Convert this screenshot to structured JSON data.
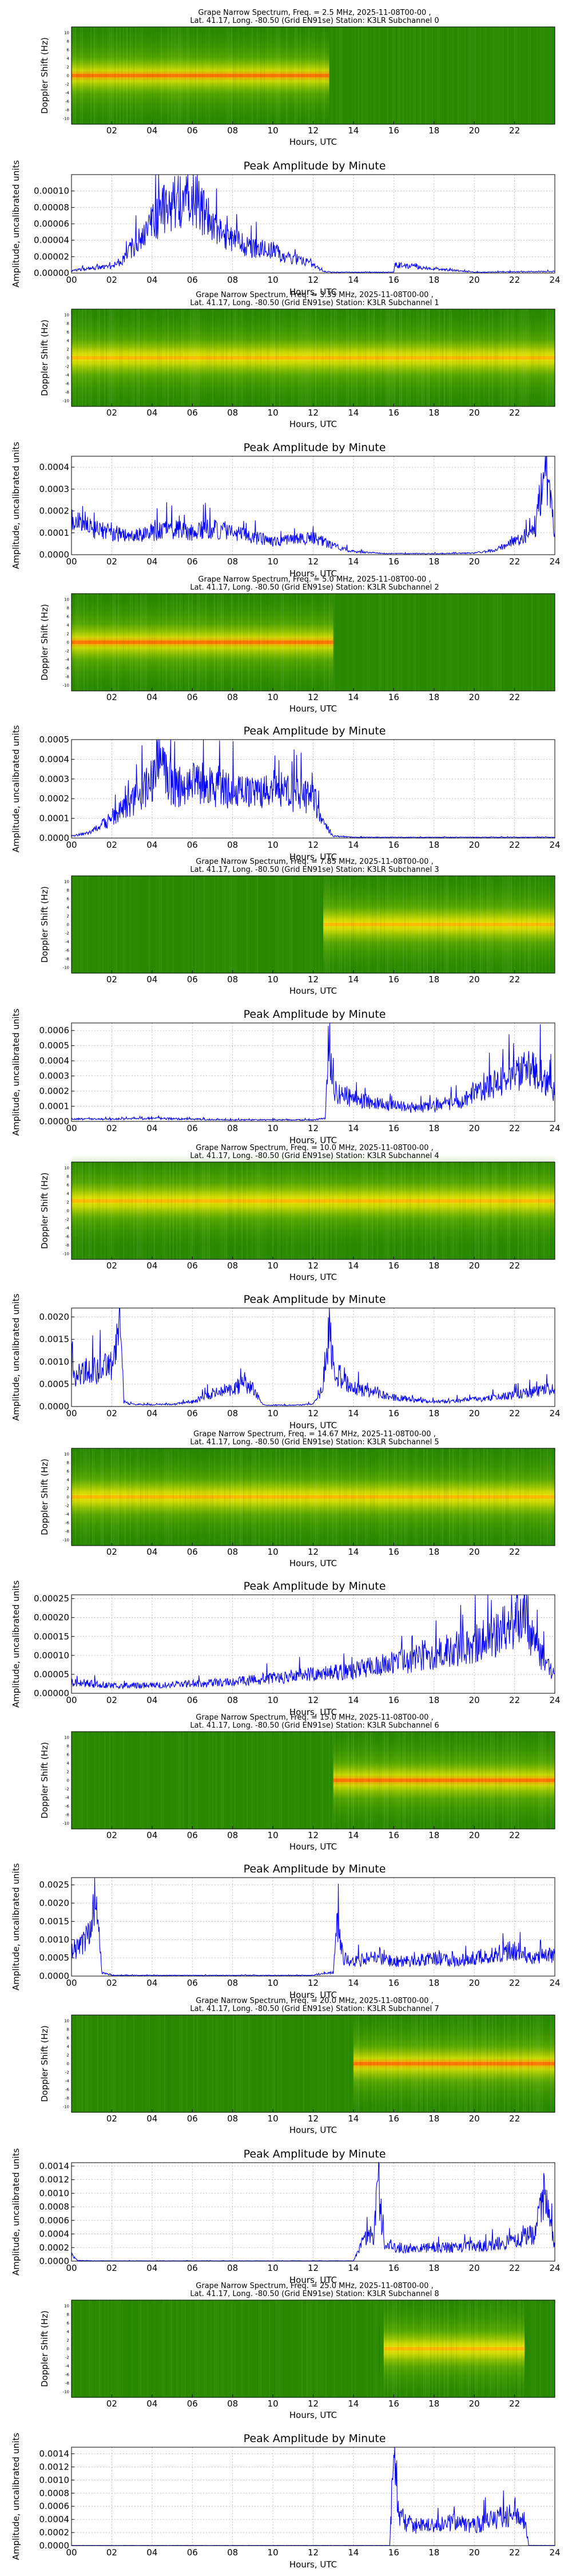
{
  "page": {
    "spectrogram_ylabel": "Doppler Shift (Hz)",
    "spectrogram_yticks": [
      "-10",
      "-8",
      "-6",
      "-4",
      "-2",
      "0",
      "2",
      "4",
      "6",
      "8",
      "10"
    ],
    "spectrogram_xticks": [
      "02",
      "04",
      "06",
      "08",
      "10",
      "12",
      "14",
      "16",
      "18",
      "20",
      "22"
    ],
    "amplitude_title": "Peak Amplitude by Minute",
    "amplitude_ylabel": "Amplitude, uncalibrated units",
    "xlabel": "Hours, UTC",
    "amplitude_xticks": [
      "00",
      "02",
      "04",
      "06",
      "08",
      "10",
      "12",
      "14",
      "16",
      "18",
      "20",
      "22",
      "24"
    ],
    "colors": {
      "line": "#0000ff",
      "grid": "#b0b0b0"
    }
  },
  "chart_data": [
    {
      "type": "heatmap",
      "title_line1": "Grape Narrow Spectrum, Freq. = 2.5 MHz, 2025-11-08T00-00 ,",
      "title_line2": "Lat.  41.17, Long. -80.50 (Grid EN91se) Station: K3LR Subchannel 0",
      "signal_hours": [
        0,
        12.8
      ],
      "center_intensity": 0.85,
      "band_offset_hz": 0,
      "ylabel": "Doppler Shift (Hz)",
      "xlabel": "Hours, UTC"
    },
    {
      "type": "line",
      "title": "Peak Amplitude by Minute",
      "ylabel": "Amplitude, uncalibrated units",
      "xlabel": "Hours, UTC",
      "xlim": [
        0,
        24
      ],
      "ylim": [
        0,
        0.00012
      ],
      "yticks": [
        "0.00000",
        "0.00002",
        "0.00004",
        "0.00006",
        "0.00008",
        "0.00010"
      ],
      "x": [
        0,
        1,
        2,
        2.5,
        3,
        3.5,
        4,
        4.5,
        5,
        5.5,
        6,
        6.5,
        7,
        7.5,
        8,
        8.5,
        9,
        9.5,
        10,
        10.5,
        11,
        11.5,
        12,
        12.5,
        13,
        16,
        16.05,
        20,
        24
      ],
      "y": [
        3e-06,
        6e-06,
        8e-06,
        1.5e-05,
        3e-05,
        4.5e-05,
        6e-05,
        7.5e-05,
        8.5e-05,
        9e-05,
        9e-05,
        7.5e-05,
        6e-05,
        4.5e-05,
        4e-05,
        3.5e-05,
        3e-05,
        3e-05,
        2.8e-05,
        2e-05,
        1.8e-05,
        1.5e-05,
        1e-05,
        2e-06,
        1e-06,
        1e-06,
        1e-05,
        1e-06,
        2e-06
      ]
    },
    {
      "type": "heatmap",
      "title_line1": "Grape Narrow Spectrum, Freq. = 3.33 MHz, 2025-11-08T00-00 ,",
      "title_line2": "Lat.  41.17, Long. -80.50 (Grid EN91se) Station: K3LR Subchannel 1",
      "signal_hours": [
        0,
        24
      ],
      "center_intensity": 0.7,
      "band_offset_hz": 0,
      "ylabel": "Doppler Shift (Hz)",
      "xlabel": "Hours, UTC"
    },
    {
      "type": "line",
      "title": "Peak Amplitude by Minute",
      "ylabel": "Amplitude, uncalibrated units",
      "xlabel": "Hours, UTC",
      "xlim": [
        0,
        24
      ],
      "ylim": [
        0,
        0.00045
      ],
      "yticks": [
        "0.0000",
        "0.0001",
        "0.0002",
        "0.0003",
        "0.0004"
      ],
      "x": [
        0,
        1,
        2,
        3,
        4,
        5,
        6,
        7,
        8,
        9,
        10,
        11,
        12,
        13,
        14,
        15,
        16,
        17,
        18,
        19,
        20,
        21,
        22,
        23,
        23.5,
        24
      ],
      "y": [
        0.00015,
        0.00012,
        0.0001,
        8e-05,
        0.0001,
        0.00012,
        0.0001,
        0.00012,
        0.0001,
        8e-05,
        6e-05,
        7e-05,
        8e-05,
        4e-05,
        1.5e-05,
        8e-06,
        5e-06,
        5e-06,
        5e-06,
        6e-06,
        8e-06,
        2e-05,
        6e-05,
        0.0001,
        0.0004,
        0.0001
      ]
    },
    {
      "type": "heatmap",
      "title_line1": "Grape Narrow Spectrum, Freq. = 5.0 MHz, 2025-11-08T00-00 ,",
      "title_line2": "Lat.  41.17, Long. -80.50 (Grid EN91se) Station: K3LR Subchannel 2",
      "signal_hours": [
        0,
        13
      ],
      "center_intensity": 0.9,
      "band_offset_hz": 0,
      "ylabel": "Doppler Shift (Hz)",
      "xlabel": "Hours, UTC"
    },
    {
      "type": "line",
      "title": "Peak Amplitude by Minute",
      "ylabel": "Amplitude, uncalibrated units",
      "xlabel": "Hours, UTC",
      "xlim": [
        0,
        24
      ],
      "ylim": [
        0,
        0.0005
      ],
      "yticks": [
        "0.0000",
        "0.0001",
        "0.0002",
        "0.0003",
        "0.0004",
        "0.0005"
      ],
      "x": [
        0,
        1,
        2,
        3,
        4,
        4.5,
        5,
        6,
        7,
        8,
        9,
        10,
        11,
        12,
        12.5,
        13,
        14,
        16,
        18,
        20,
        22,
        24
      ],
      "y": [
        1e-05,
        3e-05,
        0.0001,
        0.00018,
        0.0003,
        0.00042,
        0.00025,
        0.00028,
        0.00026,
        0.00024,
        0.00022,
        0.00025,
        0.00022,
        0.0002,
        8e-05,
        1e-05,
        4e-06,
        4e-06,
        4e-06,
        4e-06,
        4e-06,
        4e-06
      ]
    },
    {
      "type": "heatmap",
      "title_line1": "Grape Narrow Spectrum, Freq. = 7.85 MHz, 2025-11-08T00-00 ,",
      "title_line2": "Lat.  41.17, Long. -80.50 (Grid EN91se) Station: K3LR Subchannel 3",
      "signal_hours": [
        12.5,
        24
      ],
      "center_intensity": 0.55,
      "band_offset_hz": 0,
      "ylabel": "Doppler Shift (Hz)",
      "xlabel": "Hours, UTC"
    },
    {
      "type": "line",
      "title": "Peak Amplitude by Minute",
      "ylabel": "Amplitude, uncalibrated units",
      "xlabel": "Hours, UTC",
      "xlim": [
        0,
        24
      ],
      "ylim": [
        0,
        0.00065
      ],
      "yticks": [
        "0.0000",
        "0.0001",
        "0.0002",
        "0.0003",
        "0.0004",
        "0.0005",
        "0.0006"
      ],
      "x": [
        0,
        2,
        4,
        6,
        8,
        10,
        12,
        12.6,
        12.8,
        13,
        14,
        15,
        16,
        17,
        18,
        19,
        20,
        21,
        22,
        23,
        24
      ],
      "y": [
        1.5e-05,
        1.5e-05,
        2e-05,
        1.5e-05,
        1e-05,
        1e-05,
        1e-05,
        2e-05,
        0.0006,
        0.0002,
        0.00015,
        0.00012,
        0.0001,
        9e-05,
        0.0001,
        0.00012,
        0.00018,
        0.00025,
        0.0003,
        0.00035,
        0.0002
      ]
    },
    {
      "type": "heatmap",
      "title_line1": "Grape Narrow Spectrum, Freq. = 10.0 MHz, 2025-11-08T00-00 ,",
      "title_line2": "Lat.  41.17, Long. -80.50 (Grid EN91se) Station: K3LR Subchannel 4",
      "signal_hours": [
        0,
        24
      ],
      "center_intensity": 0.6,
      "band_offset_hz": 2,
      "ylabel": "Doppler Shift (Hz)",
      "xlabel": "Hours, UTC"
    },
    {
      "type": "line",
      "title": "Peak Amplitude by Minute",
      "ylabel": "Amplitude, uncalibrated units",
      "xlabel": "Hours, UTC",
      "xlim": [
        0,
        24
      ],
      "ylim": [
        0,
        0.0022
      ],
      "yticks": [
        "0.0000",
        "0.0005",
        "0.0010",
        "0.0015",
        "0.0020"
      ],
      "x": [
        0,
        1,
        2,
        2.4,
        2.6,
        3,
        4,
        5,
        6,
        7,
        8,
        8.5,
        9,
        9.4,
        9.6,
        10,
        11,
        12,
        12.4,
        12.8,
        13,
        14,
        15,
        16,
        17,
        18,
        20,
        22,
        24
      ],
      "y": [
        0.0007,
        0.0008,
        0.0009,
        0.002,
        0.0001,
        5e-05,
        4e-05,
        5e-05,
        0.0001,
        0.0003,
        0.0004,
        0.0005,
        0.0004,
        0.0001,
        3e-05,
        3e-05,
        3e-05,
        5e-05,
        0.0003,
        0.0017,
        0.0008,
        0.0004,
        0.0003,
        0.0002,
        0.00015,
        0.0001,
        0.00015,
        0.00025,
        0.0004
      ]
    },
    {
      "type": "heatmap",
      "title_line1": "Grape Narrow Spectrum, Freq. = 14.67 MHz, 2025-11-08T00-00 ,",
      "title_line2": "Lat.  41.17, Long. -80.50 (Grid EN91se) Station: K3LR Subchannel 5",
      "signal_hours": [
        0,
        24
      ],
      "center_intensity": 0.5,
      "band_offset_hz": 0,
      "ylabel": "Doppler Shift (Hz)",
      "xlabel": "Hours, UTC"
    },
    {
      "type": "line",
      "title": "Peak Amplitude by Minute",
      "ylabel": "Amplitude, uncalibrated units",
      "xlabel": "Hours, UTC",
      "xlim": [
        0,
        24
      ],
      "ylim": [
        0,
        0.00026
      ],
      "yticks": [
        "0.00000",
        "0.00005",
        "0.00010",
        "0.00015",
        "0.00020",
        "0.00025"
      ],
      "x": [
        0,
        2,
        4,
        6,
        8,
        10,
        12,
        14,
        16,
        18,
        20,
        21,
        22,
        22.5,
        23,
        24
      ],
      "y": [
        3e-05,
        2e-05,
        2e-05,
        2.5e-05,
        3e-05,
        4e-05,
        5e-05,
        6e-05,
        8e-05,
        0.0001,
        0.00013,
        0.00015,
        0.00018,
        0.00022,
        0.00012,
        5e-05
      ]
    },
    {
      "type": "heatmap",
      "title_line1": "Grape Narrow Spectrum, Freq. = 15.0 MHz, 2025-11-08T00-00 ,",
      "title_line2": "Lat.  41.17, Long. -80.50 (Grid EN91se) Station: K3LR Subchannel 6",
      "signal_hours": [
        13,
        24
      ],
      "center_intensity": 0.75,
      "band_offset_hz": 0,
      "ylabel": "Doppler Shift (Hz)",
      "xlabel": "Hours, UTC"
    },
    {
      "type": "line",
      "title": "Peak Amplitude by Minute",
      "ylabel": "Amplitude, uncalibrated units",
      "xlabel": "Hours, UTC",
      "xlim": [
        0,
        24
      ],
      "ylim": [
        0,
        0.0027
      ],
      "yticks": [
        "0.0000",
        "0.0005",
        "0.0010",
        "0.0015",
        "0.0020",
        "0.0025"
      ],
      "x": [
        0,
        0.5,
        1,
        1.2,
        1.5,
        2,
        4,
        6,
        8,
        10,
        12,
        13,
        13.2,
        13.5,
        14,
        15,
        16,
        17,
        18,
        19,
        20,
        21,
        22,
        23,
        24
      ],
      "y": [
        0.0007,
        0.0008,
        0.0012,
        0.0025,
        0.0001,
        2e-05,
        2e-05,
        2e-05,
        2e-05,
        2e-05,
        2e-05,
        0.0001,
        0.0014,
        0.0005,
        0.0004,
        0.0005,
        0.0004,
        0.0004,
        0.0005,
        0.0004,
        0.0005,
        0.0006,
        0.0007,
        0.0005,
        0.0006
      ]
    },
    {
      "type": "heatmap",
      "title_line1": "Grape Narrow Spectrum, Freq. = 20.0 MHz, 2025-11-08T00-00 ,",
      "title_line2": "Lat.  41.17, Long. -80.50 (Grid EN91se) Station: K3LR Subchannel 7",
      "signal_hours": [
        14,
        24
      ],
      "center_intensity": 0.75,
      "band_offset_hz": 0,
      "ylabel": "Doppler Shift (Hz)",
      "xlabel": "Hours, UTC"
    },
    {
      "type": "line",
      "title": "Peak Amplitude by Minute",
      "ylabel": "Amplitude, uncalibrated units",
      "xlabel": "Hours, UTC",
      "xlim": [
        0,
        24
      ],
      "ylim": [
        0,
        0.00145
      ],
      "yticks": [
        "0.0000",
        "0.0002",
        "0.0004",
        "0.0006",
        "0.0008",
        "0.0010",
        "0.0012",
        "0.0014"
      ],
      "x": [
        0,
        0.3,
        1,
        4,
        8,
        12,
        14,
        14.5,
        15,
        15.2,
        15.5,
        16,
        17,
        18,
        19,
        20,
        21,
        22,
        23,
        23.5,
        24
      ],
      "y": [
        0.0001,
        1e-05,
        5e-06,
        5e-06,
        5e-06,
        5e-06,
        5e-06,
        0.0003,
        0.0004,
        0.0013,
        0.0003,
        0.0002,
        0.00018,
        0.0002,
        0.0002,
        0.00022,
        0.00025,
        0.0003,
        0.0004,
        0.001,
        0.0002
      ]
    },
    {
      "type": "heatmap",
      "title_line1": "Grape Narrow Spectrum, Freq. = 25.0 MHz, 2025-11-08T00-00 ,",
      "title_line2": "Lat.  41.17, Long. -80.50 (Grid EN91se) Station: K3LR Subchannel 8",
      "signal_hours": [
        15.5,
        22.5
      ],
      "center_intensity": 0.7,
      "band_offset_hz": 0,
      "ylabel": "Doppler Shift (Hz)",
      "xlabel": "Hours, UTC"
    },
    {
      "type": "line",
      "title": "Peak Amplitude by Minute",
      "ylabel": "Amplitude, uncalibrated units",
      "xlabel": "Hours, UTC",
      "xlim": [
        0,
        24
      ],
      "ylim": [
        0,
        0.0015
      ],
      "yticks": [
        "0.0000",
        "0.0002",
        "0.0004",
        "0.0006",
        "0.0008",
        "0.0010",
        "0.0012",
        "0.0014"
      ],
      "x": [
        0,
        4,
        8,
        12,
        15.8,
        16,
        16.3,
        16.6,
        17,
        18,
        19,
        20,
        21,
        22,
        22.5,
        22.7,
        24
      ],
      "y": [
        3e-06,
        3e-06,
        3e-06,
        3e-06,
        3e-06,
        0.0014,
        0.0004,
        0.00035,
        0.0003,
        0.0003,
        0.00035,
        0.0003,
        0.0004,
        0.0005,
        0.0004,
        5e-06,
        3e-06
      ]
    }
  ]
}
